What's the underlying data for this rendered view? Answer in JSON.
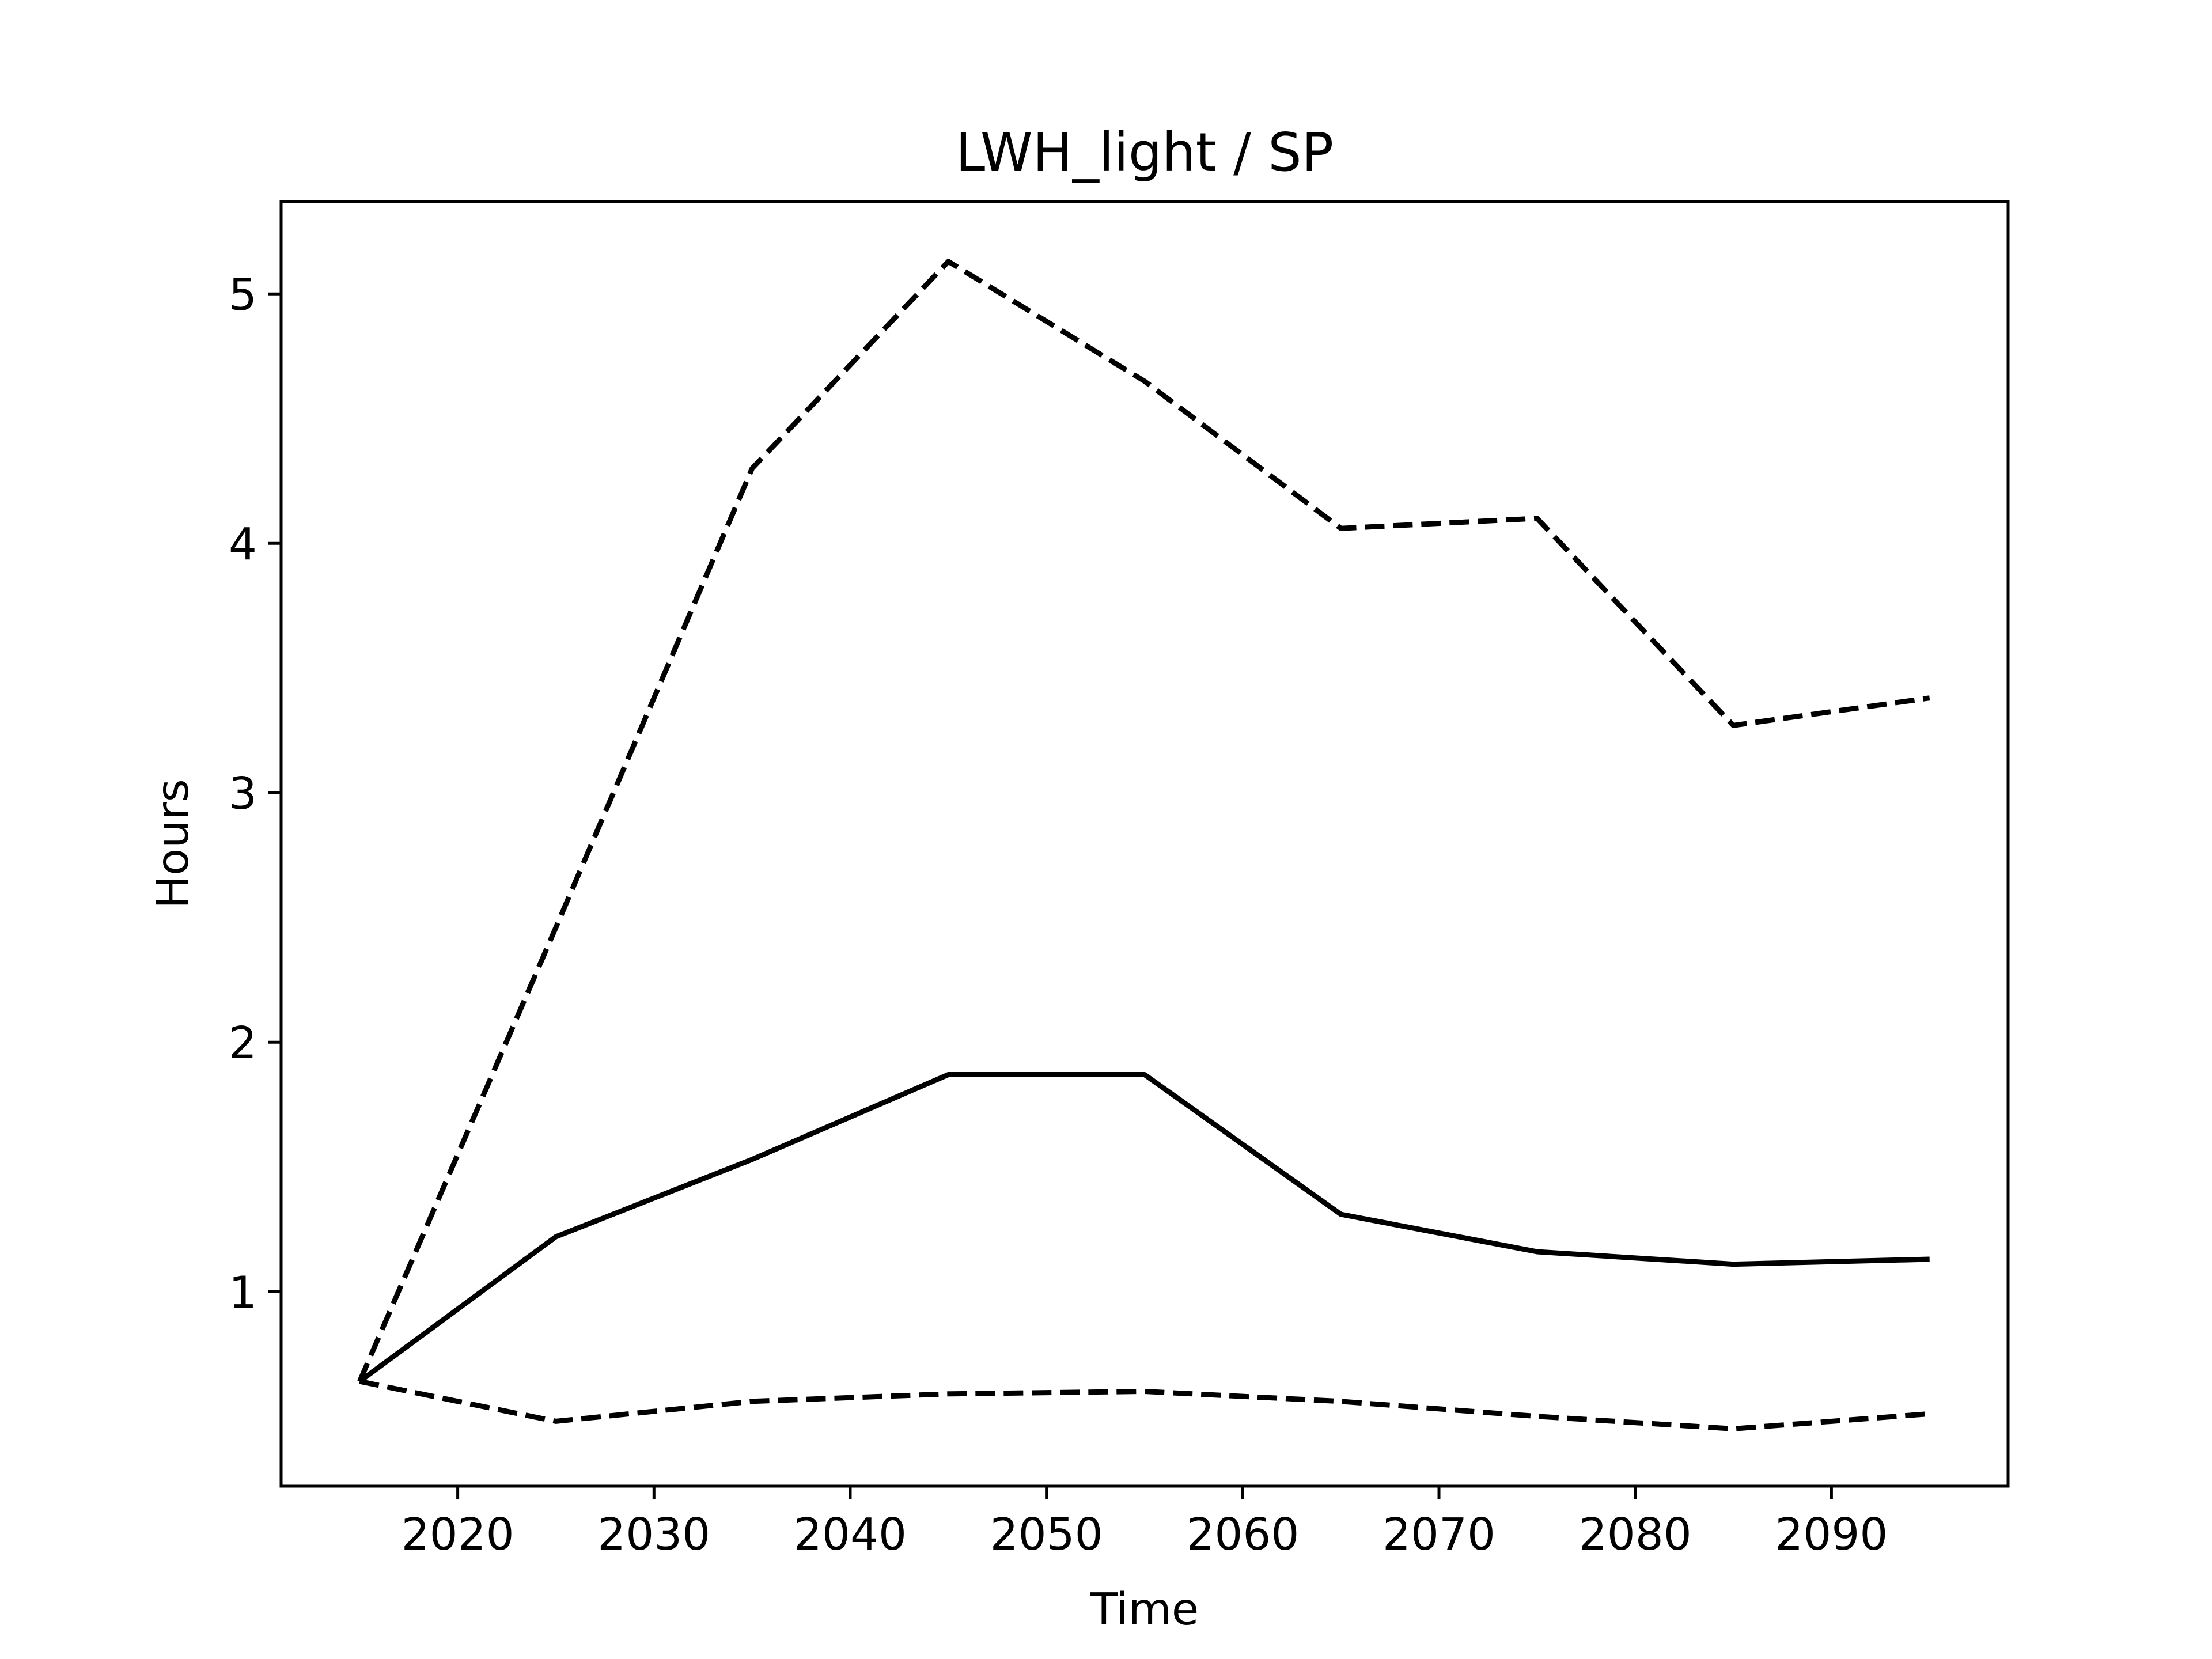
{
  "chart_data": {
    "type": "line",
    "title": "LWH_light / SP",
    "xlabel": "Time",
    "ylabel": "Hours",
    "xlim": [
      2011,
      2099
    ],
    "ylim": [
      0.22,
      5.37
    ],
    "xticks": [
      2020,
      2030,
      2040,
      2050,
      2060,
      2070,
      2080,
      2090
    ],
    "yticks": [
      1,
      2,
      3,
      4,
      5
    ],
    "grid": false,
    "legend": "none",
    "colors": {
      "line": "#000000",
      "frame": "#000000",
      "background": "#ffffff"
    },
    "x": [
      2015,
      2025,
      2035,
      2045,
      2055,
      2065,
      2075,
      2085,
      2095
    ],
    "series": [
      {
        "style": "solid",
        "values": [
          0.64,
          1.22,
          1.53,
          1.87,
          1.87,
          1.31,
          1.16,
          1.11,
          1.13
        ]
      },
      {
        "style": "dashed",
        "values": [
          0.64,
          2.46,
          4.3,
          5.13,
          4.65,
          4.06,
          4.1,
          3.27,
          3.38
        ]
      },
      {
        "style": "dashed",
        "values": [
          0.64,
          0.48,
          0.56,
          0.59,
          0.6,
          0.56,
          0.5,
          0.45,
          0.51
        ]
      }
    ]
  }
}
